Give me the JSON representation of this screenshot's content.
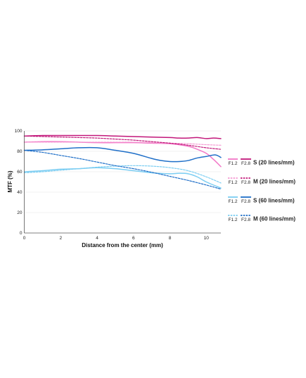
{
  "chart_data": {
    "type": "line",
    "xlabel": "Distance from the center (mm)",
    "ylabel": "MTF (%)",
    "xlim": [
      0,
      10.8
    ],
    "ylim": [
      0,
      100
    ],
    "xticks": [
      "0",
      "2",
      "4",
      "6",
      "8",
      "10"
    ],
    "yticks": [
      "0",
      "20",
      "40",
      "60",
      "80",
      "100"
    ],
    "grid": "horizontal",
    "legend_position": "right",
    "apertures": [
      "F1.2",
      "F2.8"
    ],
    "colors": {
      "s20_f12": "#f277c7",
      "s20_f28": "#c2177a",
      "m20_f12": "#f59ad3",
      "m20_f28": "#c2177a",
      "s60_f12": "#7bcdf2",
      "s60_f28": "#1f6fc8",
      "m60_f12": "#7bcdf2",
      "m60_f28": "#1f6fc8",
      "grid": "#e3e3e3",
      "axis": "#555555"
    },
    "legend": [
      {
        "label": "S (20 lines/mm)"
      },
      {
        "label": "M (20 lines/mm)"
      },
      {
        "label": "S (60 lines/mm)"
      },
      {
        "label": "M (60 lines/mm)"
      }
    ],
    "series": [
      {
        "key": "s20_f12",
        "style": "solid",
        "x": [
          0,
          1,
          2,
          3,
          4,
          5,
          6,
          7,
          8,
          9,
          9.5,
          10,
          10.4,
          10.8
        ],
        "y": [
          89,
          89.5,
          89.5,
          89,
          88.5,
          88.5,
          88.5,
          88,
          87.5,
          85,
          82,
          78,
          72,
          65
        ]
      },
      {
        "key": "s20_f28",
        "style": "solid",
        "x": [
          0,
          1,
          2,
          3,
          4,
          5,
          6,
          7,
          8,
          8.5,
          9,
          9.5,
          10,
          10.4,
          10.8
        ],
        "y": [
          95,
          95.5,
          95.5,
          95.5,
          95.5,
          95,
          94.5,
          94,
          93.5,
          93,
          93,
          93.5,
          92.5,
          93,
          92.5
        ]
      },
      {
        "key": "m20_f12",
        "style": "dashed",
        "x": [
          0,
          1,
          2,
          3,
          4,
          5,
          6,
          7,
          8,
          9,
          10,
          10.8
        ],
        "y": [
          89,
          89,
          89,
          89,
          89,
          89,
          89,
          88.5,
          88,
          87.5,
          86.5,
          86
        ]
      },
      {
        "key": "m20_f28",
        "style": "dashed",
        "x": [
          0,
          1,
          2,
          3,
          4,
          5,
          6,
          7,
          8,
          9,
          10,
          10.8
        ],
        "y": [
          95,
          94.5,
          94,
          93.5,
          93,
          92,
          91,
          89.5,
          88,
          86,
          83.5,
          82
        ]
      },
      {
        "key": "s60_f12",
        "style": "solid",
        "x": [
          0,
          1,
          2,
          3,
          4,
          5,
          6,
          7,
          8,
          8.5,
          9,
          9.5,
          10,
          10.8
        ],
        "y": [
          60,
          61,
          62.5,
          63,
          64,
          63,
          61,
          59,
          58,
          58.5,
          58,
          55,
          50,
          44
        ]
      },
      {
        "key": "s60_f28",
        "style": "solid",
        "x": [
          0,
          1,
          2,
          3,
          4,
          5,
          6,
          7,
          7.5,
          8,
          8.5,
          9,
          9.5,
          10,
          10.5,
          10.8
        ],
        "y": [
          81,
          81.5,
          82.5,
          83.5,
          83.5,
          81,
          78,
          73,
          71,
          70,
          70,
          71,
          73.5,
          75,
          76.5,
          74
        ]
      },
      {
        "key": "m60_f12",
        "style": "dashed",
        "x": [
          0,
          1,
          2,
          3,
          4,
          5,
          6,
          7,
          8,
          9,
          10,
          10.8
        ],
        "y": [
          59,
          60,
          61.5,
          63,
          64.5,
          65.5,
          66,
          65.5,
          64,
          61,
          55,
          49
        ]
      },
      {
        "key": "m60_f28",
        "style": "dashed",
        "x": [
          0,
          1,
          2,
          3,
          4,
          5,
          6,
          7,
          8,
          9,
          10,
          10.8
        ],
        "y": [
          81,
          79,
          76,
          73,
          69.5,
          66,
          63,
          59.5,
          55.5,
          51.5,
          47,
          43
        ]
      }
    ]
  }
}
